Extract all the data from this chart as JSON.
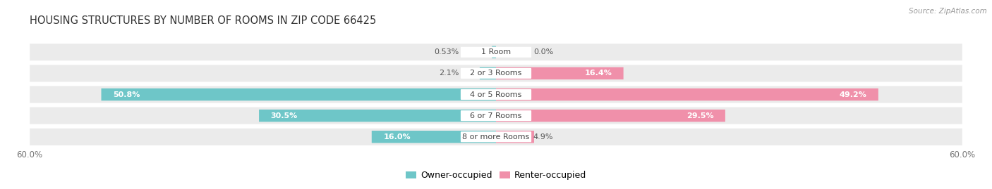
{
  "title": "HOUSING STRUCTURES BY NUMBER OF ROOMS IN ZIP CODE 66425",
  "source": "Source: ZipAtlas.com",
  "categories": [
    "1 Room",
    "2 or 3 Rooms",
    "4 or 5 Rooms",
    "6 or 7 Rooms",
    "8 or more Rooms"
  ],
  "owner_values": [
    0.53,
    2.1,
    50.8,
    30.5,
    16.0
  ],
  "renter_values": [
    0.0,
    16.4,
    49.2,
    29.5,
    4.9
  ],
  "owner_color": "#6ec6c8",
  "renter_color": "#f090aa",
  "row_bg_color": "#ebebeb",
  "x_max": 60.0,
  "title_fontsize": 10.5,
  "label_fontsize": 8,
  "legend_fontsize": 9,
  "source_fontsize": 7.5
}
